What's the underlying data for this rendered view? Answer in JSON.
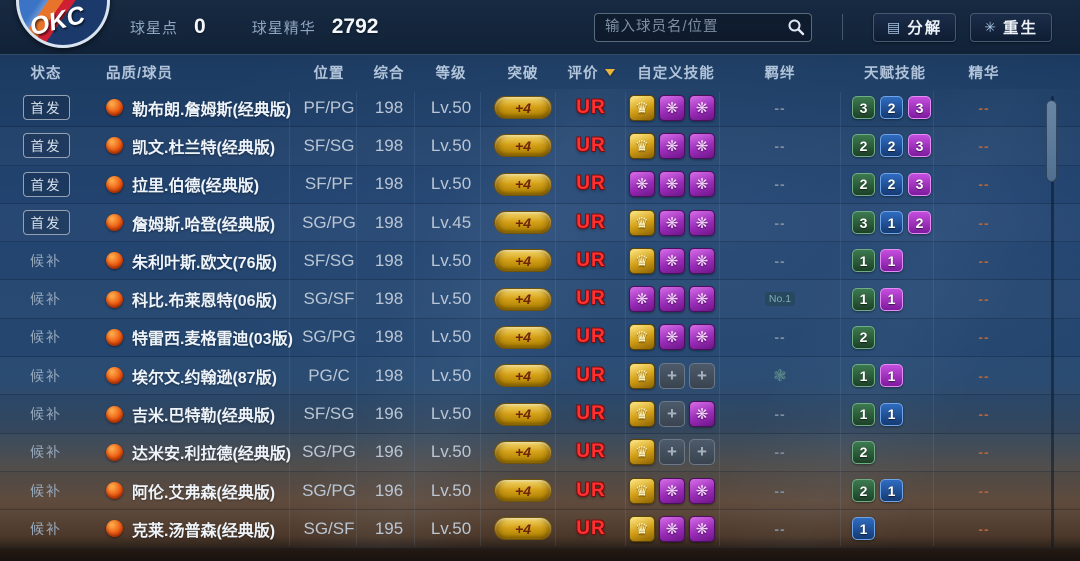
{
  "topbar": {
    "logo": "OKC",
    "stats": [
      {
        "label": "球星点",
        "value": "0"
      },
      {
        "label": "球星精华",
        "value": "2792"
      }
    ],
    "search": {
      "placeholder": "输入球员名/位置",
      "icon": "search-icon"
    },
    "buttons": [
      {
        "label": "分解",
        "icon": "decompose-icon",
        "icon_glyph": "▤"
      },
      {
        "label": "重生",
        "icon": "rebirth-icon",
        "icon_glyph": "✳"
      }
    ]
  },
  "table": {
    "headers": {
      "status": "状态",
      "player": "品质/球员",
      "position": "位置",
      "overall": "综合",
      "level": "等级",
      "breakthrough": "突破",
      "rating": "评价",
      "custom_skills": "自定义技能",
      "bond": "羁绊",
      "talent_skills": "天赋技能",
      "essence": "精华"
    },
    "sorted_by": "评价",
    "rows": [
      {
        "status": "首发",
        "name": "勒布朗.詹姆斯(经典版)",
        "position": "PF/PG",
        "overall": "198",
        "level": "Lv.50",
        "breakthrough": "+4",
        "rating": "UR",
        "skills": [
          "crown",
          "purple",
          "purple"
        ],
        "bond": "--",
        "talents": [
          [
            "3",
            "green"
          ],
          [
            "2",
            "blue"
          ],
          [
            "3",
            "purple"
          ]
        ],
        "essence": "--"
      },
      {
        "status": "首发",
        "name": "凯文.杜兰特(经典版)",
        "position": "SF/SG",
        "overall": "198",
        "level": "Lv.50",
        "breakthrough": "+4",
        "rating": "UR",
        "skills": [
          "crown",
          "purple",
          "purple"
        ],
        "bond": "--",
        "talents": [
          [
            "2",
            "green"
          ],
          [
            "2",
            "blue"
          ],
          [
            "3",
            "purple"
          ]
        ],
        "essence": "--"
      },
      {
        "status": "首发",
        "name": "拉里.伯德(经典版)",
        "position": "SF/PF",
        "overall": "198",
        "level": "Lv.50",
        "breakthrough": "+4",
        "rating": "UR",
        "skills": [
          "purple",
          "purple",
          "purple"
        ],
        "bond": "--",
        "talents": [
          [
            "2",
            "green"
          ],
          [
            "2",
            "blue"
          ],
          [
            "3",
            "purple"
          ]
        ],
        "essence": "--"
      },
      {
        "status": "首发",
        "name": "詹姆斯.哈登(经典版)",
        "position": "SG/PG",
        "overall": "198",
        "level": "Lv.45",
        "breakthrough": "+4",
        "rating": "UR",
        "skills": [
          "crown",
          "purple",
          "purple"
        ],
        "bond": "--",
        "talents": [
          [
            "3",
            "green"
          ],
          [
            "1",
            "blue"
          ],
          [
            "2",
            "purple"
          ]
        ],
        "essence": "--"
      },
      {
        "status": "候补",
        "name": "朱利叶斯.欧文(76版)",
        "position": "SF/SG",
        "overall": "198",
        "level": "Lv.50",
        "breakthrough": "+4",
        "rating": "UR",
        "skills": [
          "crown",
          "purple",
          "purple"
        ],
        "bond": "--",
        "talents": [
          [
            "1",
            "green"
          ],
          [
            "1",
            "purple"
          ]
        ],
        "essence": "--"
      },
      {
        "status": "候补",
        "name": "科比.布莱恩特(06版)",
        "position": "SG/SF",
        "overall": "198",
        "level": "Lv.50",
        "breakthrough": "+4",
        "rating": "UR",
        "skills": [
          "purple",
          "purple",
          "purple"
        ],
        "bond": "No.1",
        "talents": [
          [
            "1",
            "green"
          ],
          [
            "1",
            "purple"
          ]
        ],
        "essence": "--"
      },
      {
        "status": "候补",
        "name": "特雷西.麦格雷迪(03版)",
        "position": "SG/PG",
        "overall": "198",
        "level": "Lv.50",
        "breakthrough": "+4",
        "rating": "UR",
        "skills": [
          "crown",
          "purple",
          "purple"
        ],
        "bond": "--",
        "talents": [
          [
            "2",
            "green"
          ]
        ],
        "essence": "--"
      },
      {
        "status": "候补",
        "name": "埃尔文.约翰逊(87版)",
        "position": "PG/C",
        "overall": "198",
        "level": "Lv.50",
        "breakthrough": "+4",
        "rating": "UR",
        "skills": [
          "crown",
          "empty",
          "empty"
        ],
        "bond": "icon",
        "talents": [
          [
            "1",
            "green"
          ],
          [
            "1",
            "purple"
          ]
        ],
        "essence": "--"
      },
      {
        "status": "候补",
        "name": "吉米.巴特勒(经典版)",
        "position": "SF/SG",
        "overall": "196",
        "level": "Lv.50",
        "breakthrough": "+4",
        "rating": "UR",
        "skills": [
          "crown",
          "empty",
          "purple"
        ],
        "bond": "--",
        "talents": [
          [
            "1",
            "green"
          ],
          [
            "1",
            "blue"
          ]
        ],
        "essence": "--"
      },
      {
        "status": "候补",
        "name": "达米安.利拉德(经典版)",
        "position": "SG/PG",
        "overall": "196",
        "level": "Lv.50",
        "breakthrough": "+4",
        "rating": "UR",
        "skills": [
          "crown",
          "empty",
          "empty"
        ],
        "bond": "--",
        "talents": [
          [
            "2",
            "green"
          ]
        ],
        "essence": "--"
      },
      {
        "status": "候补",
        "name": "阿伦.艾弗森(经典版)",
        "position": "SG/PG",
        "overall": "196",
        "level": "Lv.50",
        "breakthrough": "+4",
        "rating": "UR",
        "skills": [
          "crown",
          "purple",
          "purple"
        ],
        "bond": "--",
        "talents": [
          [
            "2",
            "green"
          ],
          [
            "1",
            "blue"
          ]
        ],
        "essence": "--"
      },
      {
        "status": "候补",
        "name": "克莱.汤普森(经典版)",
        "position": "SG/SF",
        "overall": "195",
        "level": "Lv.50",
        "breakthrough": "+4",
        "rating": "UR",
        "skills": [
          "crown",
          "purple",
          "purple"
        ],
        "bond": "--",
        "talents": [
          [
            "1",
            "blue"
          ]
        ],
        "essence": "--"
      }
    ]
  },
  "colors": {
    "accent_gold": "#e8b43a",
    "rating_red": "#ff3030",
    "pill_gold": "#d4a017",
    "talent_green": "#2e6a44",
    "talent_blue": "#2f6cc0",
    "talent_purple": "#c44ede",
    "essence_dash": "#b5643a",
    "bond_dash": "#7e8da0",
    "bg_navy": "#224470",
    "bg_court_brown": "#5f4b3d"
  }
}
